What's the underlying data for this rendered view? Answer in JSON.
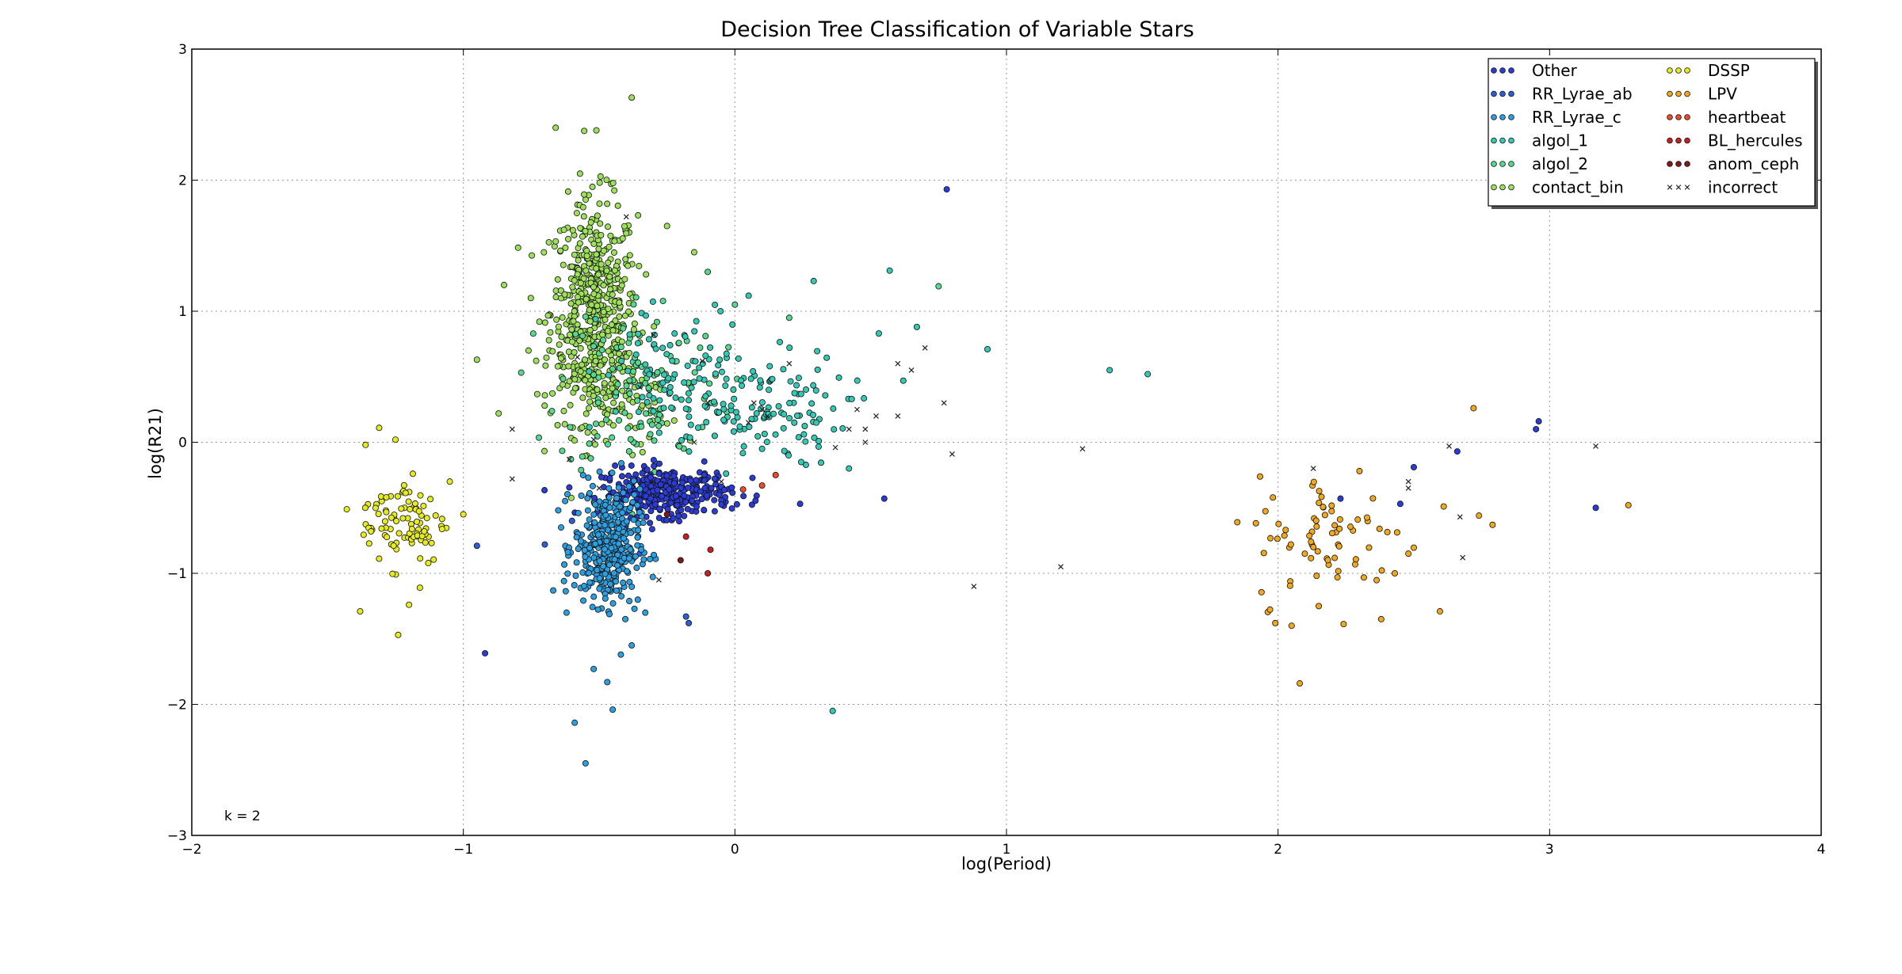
{
  "chart_data": {
    "type": "scatter",
    "title": "Decision Tree Classification of Variable Stars",
    "xlabel": "log(Period)",
    "ylabel": "log(R21)",
    "xlim": [
      -2,
      4
    ],
    "ylim": [
      -3,
      3
    ],
    "xticks": [
      "−2",
      "−1",
      "0",
      "1",
      "2",
      "3",
      "4"
    ],
    "yticks": [
      "−3",
      "−2",
      "−1",
      "0",
      "1",
      "2",
      "3"
    ],
    "grid": true,
    "legend_position": "top-right",
    "annotation": "k = 2",
    "series": [
      {
        "name": "Other",
        "color": "#2b3cd6",
        "marker": "circle",
        "points": [
          [
            0.78,
            1.93
          ],
          [
            -0.92,
            -1.61
          ],
          [
            2.96,
            0.16
          ],
          [
            2.95,
            0.1
          ],
          [
            2.5,
            -0.19
          ],
          [
            3.17,
            -0.5
          ],
          [
            2.66,
            -0.07
          ],
          [
            0.55,
            -0.43
          ],
          [
            0.24,
            -0.47
          ],
          [
            2.45,
            -0.47
          ],
          [
            2.23,
            -0.43
          ]
        ],
        "clusters": [
          {
            "cx": -0.25,
            "cy": -0.38,
            "sx": 0.12,
            "sy": 0.09,
            "n": 320
          }
        ]
      },
      {
        "name": "RR_Lyrae_ab",
        "color": "#2a5fd8",
        "marker": "circle",
        "points": [
          [
            -0.95,
            -0.79
          ],
          [
            -0.7,
            -0.78
          ],
          [
            -0.18,
            -1.33
          ],
          [
            -0.17,
            -1.38
          ],
          [
            -0.6,
            -0.6
          ],
          [
            -0.35,
            -0.85
          ]
        ],
        "clusters": []
      },
      {
        "name": "RR_Lyrae_c",
        "color": "#2c9fe0",
        "marker": "circle",
        "points": [
          [
            -0.59,
            -2.14
          ],
          [
            -0.55,
            -2.45
          ],
          [
            -0.45,
            -2.04
          ],
          [
            -0.47,
            -1.83
          ],
          [
            -0.52,
            -1.73
          ],
          [
            -0.62,
            -1.3
          ],
          [
            -0.38,
            -1.55
          ],
          [
            -0.33,
            -1.3
          ],
          [
            -0.64,
            -0.65
          ],
          [
            -0.42,
            -1.62
          ]
        ],
        "clusters": [
          {
            "cx": -0.47,
            "cy": -0.8,
            "sx": 0.06,
            "sy": 0.22,
            "n": 380
          }
        ]
      },
      {
        "name": "algol_1",
        "color": "#33c9b5",
        "marker": "circle",
        "points": [
          [
            0.93,
            0.71
          ],
          [
            0.36,
            -2.05
          ],
          [
            1.38,
            0.55
          ],
          [
            1.52,
            0.52
          ],
          [
            0.42,
            -0.2
          ],
          [
            0.57,
            1.31
          ],
          [
            0.67,
            0.88
          ],
          [
            0.29,
            1.23
          ],
          [
            0.62,
            0.47
          ],
          [
            0.53,
            0.83
          ],
          [
            0.1,
            -0.05
          ],
          [
            0.3,
            0.15
          ],
          [
            0.43,
            0.33
          ]
        ],
        "clusters": [
          {
            "cx": 0.05,
            "cy": 0.25,
            "sx": 0.18,
            "sy": 0.22,
            "n": 130
          },
          {
            "cx": -0.2,
            "cy": 0.5,
            "sx": 0.15,
            "sy": 0.3,
            "n": 80
          }
        ]
      },
      {
        "name": "algol_2",
        "color": "#55d890",
        "marker": "circle",
        "points": [
          [
            0.75,
            1.19
          ],
          [
            -0.1,
            1.3
          ],
          [
            -0.0,
            1.05
          ],
          [
            0.2,
            0.95
          ]
        ],
        "clusters": [
          {
            "cx": -0.35,
            "cy": 0.45,
            "sx": 0.15,
            "sy": 0.35,
            "n": 120
          }
        ]
      },
      {
        "name": "contact_bin",
        "color": "#9de05a",
        "marker": "circle",
        "points": [
          [
            -0.38,
            2.63
          ],
          [
            -0.66,
            2.4
          ],
          [
            -0.51,
            2.38
          ],
          [
            -0.85,
            1.2
          ],
          [
            -0.95,
            0.63
          ],
          [
            -0.87,
            0.22
          ],
          [
            -0.72,
            0.92
          ],
          [
            -0.76,
            0.7
          ],
          [
            -0.25,
            1.65
          ],
          [
            -0.15,
            1.45
          ]
        ],
        "clusters": [
          {
            "cx": -0.52,
            "cy": 1.0,
            "sx": 0.08,
            "sy": 0.42,
            "n": 520
          },
          {
            "cx": -0.45,
            "cy": 0.35,
            "sx": 0.12,
            "sy": 0.2,
            "n": 90
          }
        ]
      },
      {
        "name": "DSSP",
        "color": "#e6ec1c",
        "marker": "circle",
        "points": [
          [
            -1.38,
            -1.29
          ],
          [
            -1.24,
            -1.47
          ],
          [
            -1.36,
            -0.02
          ],
          [
            -1.31,
            0.11
          ],
          [
            -1.25,
            0.02
          ],
          [
            -1.0,
            -0.55
          ],
          [
            -1.2,
            -1.24
          ],
          [
            -1.16,
            -1.11
          ],
          [
            -1.34,
            -0.68
          ],
          [
            -1.05,
            -0.3
          ]
        ],
        "clusters": [
          {
            "cx": -1.22,
            "cy": -0.6,
            "sx": 0.08,
            "sy": 0.17,
            "n": 90
          }
        ]
      },
      {
        "name": "LPV",
        "color": "#f2a81c",
        "marker": "circle",
        "points": [
          [
            2.72,
            0.26
          ],
          [
            2.08,
            -1.84
          ],
          [
            3.29,
            -0.48
          ],
          [
            2.79,
            -0.63
          ],
          [
            2.74,
            -0.56
          ],
          [
            2.61,
            -0.49
          ],
          [
            1.85,
            -0.61
          ],
          [
            1.99,
            -1.38
          ],
          [
            2.05,
            -1.4
          ],
          [
            2.38,
            -1.35
          ],
          [
            2.3,
            -0.22
          ],
          [
            2.43,
            -1.0
          ],
          [
            2.48,
            -0.85
          ],
          [
            2.15,
            -1.25
          ]
        ],
        "clusters": [
          {
            "cx": 2.2,
            "cy": -0.75,
            "sx": 0.14,
            "sy": 0.25,
            "n": 70
          }
        ]
      },
      {
        "name": "heartbeat",
        "color": "#ef4a2a",
        "marker": "circle",
        "points": [
          [
            0.03,
            -0.36
          ],
          [
            0.1,
            -0.33
          ],
          [
            0.15,
            -0.25
          ]
        ],
        "clusters": []
      },
      {
        "name": "BL_hercules",
        "color": "#c81f1f",
        "marker": "circle",
        "points": [
          [
            -0.1,
            -1.0
          ],
          [
            -0.09,
            -0.82
          ],
          [
            -0.18,
            -0.72
          ]
        ],
        "clusters": []
      },
      {
        "name": "anom_ceph",
        "color": "#7a1a1a",
        "marker": "circle",
        "points": [
          [
            -0.2,
            -0.9
          ],
          [
            -0.25,
            -0.55
          ]
        ],
        "clusters": []
      },
      {
        "name": "incorrect",
        "color": "#222222",
        "marker": "x",
        "points": [
          [
            -0.82,
            0.1
          ],
          [
            -0.82,
            -0.28
          ],
          [
            -0.61,
            -0.13
          ],
          [
            -0.52,
            0.02
          ],
          [
            -0.58,
            0.65
          ],
          [
            -0.3,
            0.82
          ],
          [
            -0.35,
            0.42
          ],
          [
            -0.12,
            0.62
          ],
          [
            0.07,
            0.3
          ],
          [
            0.12,
            0.2
          ],
          [
            0.1,
            0.25
          ],
          [
            0.45,
            0.25
          ],
          [
            0.52,
            0.2
          ],
          [
            0.6,
            0.2
          ],
          [
            0.48,
            0.1
          ],
          [
            0.42,
            0.1
          ],
          [
            0.48,
            0.0
          ],
          [
            0.37,
            -0.04
          ],
          [
            0.65,
            0.55
          ],
          [
            0.7,
            0.72
          ],
          [
            0.77,
            0.3
          ],
          [
            0.8,
            -0.09
          ],
          [
            1.28,
            -0.05
          ],
          [
            1.2,
            -0.95
          ],
          [
            0.88,
            -1.1
          ],
          [
            2.13,
            -0.2
          ],
          [
            2.48,
            -0.3
          ],
          [
            2.48,
            -0.35
          ],
          [
            2.67,
            -0.57
          ],
          [
            2.68,
            -0.88
          ],
          [
            2.63,
            -0.03
          ],
          [
            3.17,
            -0.03
          ],
          [
            0.6,
            0.6
          ],
          [
            -0.4,
            1.72
          ],
          [
            0.05,
            0.15
          ],
          [
            -0.1,
            0.3
          ],
          [
            -0.15,
            0.0
          ],
          [
            -0.3,
            -0.3
          ],
          [
            -0.28,
            -1.05
          ],
          [
            -0.5,
            -0.35
          ],
          [
            -0.05,
            -0.3
          ],
          [
            0.2,
            0.6
          ]
        ],
        "clusters": []
      }
    ]
  }
}
